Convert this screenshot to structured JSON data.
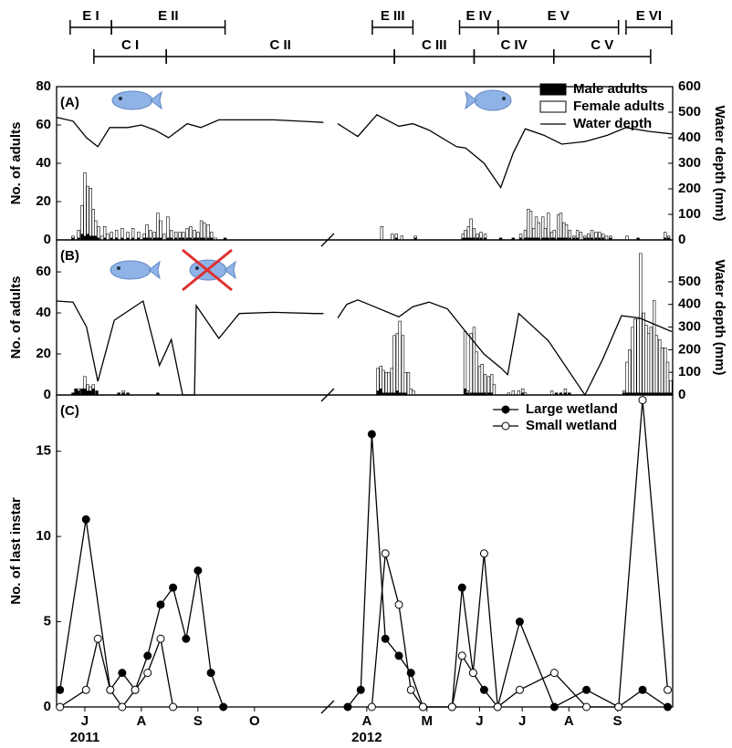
{
  "stages": {
    "E": [
      {
        "label": "E I",
        "range": [
          6.74,
          7.47
        ]
      },
      {
        "label": "E II",
        "range": [
          7.47,
          9.48
        ]
      },
      {
        "label": "E III",
        "range": [
          16.11,
          16.92
        ]
      },
      {
        "label": "E IV",
        "range": [
          17.85,
          18.62
        ]
      },
      {
        "label": "E V",
        "range": [
          18.62,
          21.02
        ]
      },
      {
        "label": "E VI",
        "range": [
          21.17,
          22.08
        ]
      }
    ],
    "C": [
      {
        "label": "C I",
        "range": [
          7.16,
          8.44
        ]
      },
      {
        "label": "C II",
        "range": [
          8.44,
          16.55
        ]
      },
      {
        "label": "C III",
        "range": [
          16.55,
          18.14
        ]
      },
      {
        "label": "C IV",
        "range": [
          18.14,
          19.73
        ]
      },
      {
        "label": "C V",
        "range": [
          19.73,
          21.66
        ]
      }
    ]
  },
  "chart_data": [
    {
      "type": "bar",
      "panel_label": "(A)",
      "ylabel": "No. of adults",
      "y2label": "Water depth (mm)",
      "xlim": [
        6.5,
        22.1
      ],
      "xbreak": [
        11.23,
        15.42
      ],
      "ylim": [
        0,
        80
      ],
      "yticks": [
        0,
        20,
        40,
        60,
        80
      ],
      "y2lim": [
        0,
        600
      ],
      "y2ticks": [
        0,
        100,
        200,
        300,
        400,
        500,
        600
      ],
      "stacked": true,
      "series": [
        {
          "name": "Male adults",
          "type": "bar",
          "color": "#000000",
          "x": [
            6.79,
            6.89,
            6.95,
            7.0,
            7.05,
            7.1,
            7.15,
            7.19,
            7.24,
            7.31,
            7.35,
            7.4,
            7.47,
            7.56,
            7.66,
            7.76,
            7.85,
            7.95,
            8.05,
            8.1,
            8.16,
            8.23,
            8.29,
            8.34,
            8.4,
            8.47,
            8.53,
            8.61,
            8.68,
            8.74,
            8.81,
            8.87,
            8.94,
            9.0,
            9.06,
            9.11,
            9.18,
            9.24,
            9.31,
            9.48,
            16.3,
            16.51,
            16.59,
            16.7,
            16.97,
            17.92,
            17.97,
            18.03,
            18.08,
            18.14,
            18.21,
            18.28,
            18.36,
            18.67,
            18.92,
            19.07,
            19.16,
            19.22,
            19.27,
            19.33,
            19.38,
            19.43,
            19.51,
            19.56,
            19.62,
            19.69,
            19.74,
            19.82,
            19.87,
            19.93,
            19.98,
            20.05,
            20.13,
            20.2,
            20.27,
            20.35,
            20.42,
            20.49,
            20.57,
            20.64,
            20.71,
            20.78,
            20.86,
            21.19,
            21.41,
            21.95,
            22.02
          ],
          "values": [
            1,
            1,
            3,
            2,
            3,
            2,
            2,
            2,
            1,
            0,
            1,
            0,
            1,
            1,
            1,
            1,
            1,
            1,
            1,
            1,
            1,
            1,
            1,
            1,
            0,
            1,
            1,
            1,
            1,
            1,
            1,
            1,
            1,
            1,
            1,
            1,
            1,
            1,
            0,
            1,
            0,
            0,
            1,
            0,
            1,
            1,
            1,
            1,
            1,
            1,
            1,
            1,
            1,
            1,
            1,
            1,
            1,
            1,
            1,
            1,
            1,
            1,
            1,
            1,
            1,
            1,
            1,
            1,
            1,
            1,
            1,
            1,
            1,
            1,
            0,
            1,
            1,
            1,
            1,
            1,
            1,
            0,
            1,
            0,
            1,
            1,
            1
          ]
        },
        {
          "name": "Female adults",
          "type": "bar",
          "color": "#ffffff",
          "x": [
            6.79,
            6.89,
            6.95,
            7.0,
            7.05,
            7.1,
            7.15,
            7.19,
            7.24,
            7.31,
            7.35,
            7.4,
            7.47,
            7.56,
            7.66,
            7.76,
            7.85,
            7.95,
            8.05,
            8.1,
            8.16,
            8.23,
            8.29,
            8.34,
            8.4,
            8.47,
            8.53,
            8.61,
            8.68,
            8.74,
            8.81,
            8.87,
            8.94,
            9.0,
            9.06,
            9.11,
            9.18,
            9.24,
            9.31,
            9.48,
            16.3,
            16.51,
            16.59,
            16.7,
            16.97,
            17.92,
            17.97,
            18.03,
            18.08,
            18.14,
            18.21,
            18.28,
            18.36,
            18.67,
            18.92,
            19.07,
            19.16,
            19.22,
            19.27,
            19.33,
            19.38,
            19.43,
            19.51,
            19.56,
            19.62,
            19.69,
            19.74,
            19.82,
            19.87,
            19.93,
            19.98,
            20.05,
            20.13,
            20.2,
            20.27,
            20.35,
            20.42,
            20.49,
            20.57,
            20.64,
            20.71,
            20.78,
            20.86,
            21.19,
            21.41,
            21.95,
            22.02
          ],
          "values": [
            1,
            4,
            15,
            33,
            25,
            25,
            14,
            8,
            6,
            2,
            6,
            3,
            3,
            4,
            5,
            3,
            5,
            3,
            2,
            7,
            4,
            3,
            13,
            9,
            3,
            11,
            4,
            3,
            3,
            3,
            5,
            6,
            4,
            3,
            9,
            8,
            7,
            3,
            1,
            0,
            7,
            3,
            2,
            2,
            1,
            2,
            4,
            6,
            10,
            5,
            2,
            3,
            2,
            0,
            0,
            2,
            4,
            15,
            14,
            5,
            11,
            8,
            11,
            5,
            13,
            3,
            4,
            12,
            13,
            8,
            7,
            4,
            1,
            4,
            4,
            1,
            2,
            4,
            3,
            3,
            2,
            2,
            1,
            2,
            0,
            3,
            1
          ]
        },
        {
          "name": "Water depth",
          "type": "line",
          "axis": "y2",
          "color": "#000000",
          "x": [
            6.5,
            6.79,
            7.03,
            7.23,
            7.44,
            7.76,
            8.0,
            8.24,
            8.48,
            8.81,
            9.05,
            9.37,
            10.34,
            10.98,
            11.22,
            15.42,
            15.82,
            16.2,
            16.64,
            16.92,
            17.24,
            17.79,
            17.97,
            18.34,
            18.67,
            18.92,
            19.16,
            19.53,
            19.89,
            20.35,
            20.8,
            21.17,
            21.62,
            22.08
          ],
          "values": [
            480,
            465,
            400,
            365,
            440,
            440,
            450,
            430,
            400,
            455,
            440,
            470,
            470,
            463,
            460,
            455,
            405,
            490,
            445,
            455,
            430,
            365,
            360,
            300,
            205,
            340,
            435,
            410,
            375,
            385,
            410,
            440,
            425,
            415
          ]
        }
      ]
    },
    {
      "type": "bar",
      "panel_label": "(B)",
      "ylabel": "No. of adults",
      "y2label": "Water depth (mm)",
      "xlim": [
        6.5,
        22.1
      ],
      "xbreak": [
        11.23,
        15.42
      ],
      "ylim": [
        0,
        75.6
      ],
      "yticks": [
        0,
        20,
        40,
        60
      ],
      "y2lim": [
        0,
        685
      ],
      "y2ticks": [
        0,
        100,
        200,
        300,
        400,
        500
      ],
      "stacked": true,
      "series": [
        {
          "name": "Male adults",
          "type": "bar",
          "color": "#000000",
          "x": [
            6.79,
            6.84,
            6.89,
            6.95,
            7.0,
            7.05,
            7.1,
            7.15,
            7.21,
            7.6,
            7.68,
            7.76,
            8.29,
            16.22,
            16.28,
            16.33,
            16.39,
            16.44,
            16.5,
            16.55,
            16.61,
            16.66,
            16.72,
            16.77,
            16.83,
            16.88,
            16.93,
            17.96,
            18.01,
            18.08,
            18.14,
            18.19,
            18.25,
            18.3,
            18.36,
            18.43,
            18.49,
            18.54,
            18.83,
            18.92,
            19.03,
            19.11,
            19.16,
            19.69,
            19.78,
            19.87,
            19.96,
            20.04,
            21.13,
            21.19,
            21.24,
            21.3,
            21.35,
            21.41,
            21.46,
            21.52,
            21.57,
            21.62,
            21.67,
            21.73,
            21.78,
            21.84,
            21.89,
            21.95,
            22.0,
            22.06
          ],
          "values": [
            1,
            3,
            2,
            3,
            3,
            2,
            2,
            3,
            2,
            1,
            1,
            1,
            1,
            2,
            3,
            1,
            1,
            1,
            1,
            1,
            2,
            1,
            1,
            1,
            0,
            0,
            0,
            3,
            1,
            1,
            1,
            1,
            1,
            1,
            1,
            1,
            1,
            0,
            0,
            0,
            0,
            1,
            0,
            0,
            1,
            1,
            1,
            1,
            1,
            1,
            1,
            1,
            1,
            1,
            1,
            1,
            1,
            1,
            1,
            1,
            1,
            1,
            1,
            1,
            1,
            1
          ]
        },
        {
          "name": "Female adults",
          "type": "bar",
          "color": "#ffffff",
          "x": [
            6.79,
            6.84,
            6.89,
            6.95,
            7.0,
            7.05,
            7.1,
            7.15,
            7.21,
            7.6,
            7.68,
            7.76,
            8.29,
            16.22,
            16.28,
            16.33,
            16.39,
            16.44,
            16.5,
            16.55,
            16.61,
            16.66,
            16.72,
            16.77,
            16.83,
            16.88,
            16.93,
            17.96,
            18.01,
            18.08,
            18.14,
            18.19,
            18.25,
            18.3,
            18.36,
            18.43,
            18.49,
            18.54,
            18.83,
            18.92,
            19.03,
            19.11,
            19.16,
            19.69,
            19.78,
            19.87,
            19.96,
            20.04,
            21.13,
            21.19,
            21.24,
            21.3,
            21.35,
            21.41,
            21.46,
            21.52,
            21.57,
            21.62,
            21.67,
            21.73,
            21.78,
            21.84,
            21.89,
            21.95,
            22.0,
            22.06
          ],
          "values": [
            0,
            0,
            1,
            0,
            6,
            3,
            2,
            2,
            0,
            0,
            1,
            0,
            0,
            11,
            11,
            11,
            10,
            10,
            12,
            28,
            28,
            35,
            28,
            10,
            11,
            3,
            2,
            28,
            1,
            29,
            32,
            20,
            13,
            14,
            9,
            8,
            9,
            5,
            1,
            2,
            2,
            2,
            1,
            2,
            0,
            0,
            2,
            0,
            1,
            15,
            21,
            32,
            36,
            36,
            68,
            39,
            33,
            29,
            32,
            45,
            28,
            26,
            22,
            22,
            15,
            6
          ]
        },
        {
          "name": "Water depth",
          "type": "line",
          "axis": "y2",
          "color": "#000000",
          "x": [
            6.5,
            6.79,
            7.03,
            7.23,
            7.52,
            8.03,
            8.32,
            8.53,
            8.73,
            8.94,
            8.97,
            9.37,
            9.73,
            10.34,
            11.06,
            11.22,
            15.42,
            15.6,
            15.82,
            16.15,
            16.64,
            16.92,
            17.24,
            17.61,
            17.97,
            18.34,
            18.67,
            18.81,
            19.03,
            19.62,
            20.35,
            20.71,
            21.08,
            21.44,
            22.08
          ],
          "values": [
            415,
            410,
            300,
            60,
            330,
            415,
            130,
            245,
            0,
            0,
            395,
            250,
            360,
            365,
            360,
            360,
            340,
            400,
            420,
            390,
            345,
            390,
            410,
            380,
            280,
            180,
            120,
            90,
            360,
            240,
            0,
            160,
            350,
            340,
            280
          ]
        }
      ]
    },
    {
      "type": "line",
      "panel_label": "(C)",
      "ylabel": "No. of last instar",
      "xlim": [
        6.5,
        22.1
      ],
      "xbreak": [
        11.23,
        15.42
      ],
      "ylim": [
        0,
        18.3
      ],
      "yticks": [
        0,
        5,
        10,
        15
      ],
      "xticks": [
        {
          "value": 7,
          "label": "J"
        },
        {
          "value": 8,
          "label": "A"
        },
        {
          "value": 9,
          "label": "S"
        },
        {
          "value": 10,
          "label": "O"
        },
        {
          "value": 16,
          "label": "A"
        },
        {
          "value": 17.2,
          "label": "M"
        },
        {
          "value": 18.25,
          "label": "J"
        },
        {
          "value": 19.1,
          "label": "J"
        },
        {
          "value": 20.03,
          "label": "A"
        },
        {
          "value": 21,
          "label": "S"
        }
      ],
      "year_ticks": [
        {
          "value": 7,
          "label": "2011"
        },
        {
          "value": 16,
          "label": "2012"
        }
      ],
      "series": [
        {
          "name": "Large wetland",
          "type": "line",
          "color": "#000000",
          "marker_color": "#000000",
          "x": [
            6.56,
            7.02,
            7.45,
            7.66,
            7.89,
            8.11,
            8.34,
            8.56,
            8.79,
            9.0,
            9.23,
            9.45,
            15.62,
            15.88,
            16.1,
            16.37,
            16.64,
            16.88,
            17.12,
            17.7,
            17.9,
            18.12,
            18.34,
            18.61,
            19.05,
            19.74,
            20.38,
            21.02,
            21.5,
            22.0
          ],
          "values": [
            1,
            11,
            1,
            2,
            1,
            3,
            6,
            7,
            4,
            8,
            2,
            0,
            0,
            1,
            16,
            4,
            3,
            2,
            0,
            0,
            7,
            2,
            1,
            0,
            5,
            0,
            1,
            0,
            1,
            0
          ]
        },
        {
          "name": "Small wetland",
          "type": "line",
          "color": "#000000",
          "marker_color": "#ffffff",
          "x": [
            6.56,
            7.02,
            7.23,
            7.45,
            7.66,
            7.89,
            8.11,
            8.34,
            8.56,
            16.1,
            16.37,
            16.64,
            16.88,
            17.12,
            17.7,
            17.9,
            18.12,
            18.34,
            18.61,
            19.05,
            19.74,
            20.38,
            21.02,
            21.5,
            22.0
          ],
          "values": [
            0,
            1,
            4,
            1,
            0,
            1,
            2,
            4,
            0,
            0,
            9,
            6,
            1,
            0,
            0,
            3,
            2,
            9,
            0,
            1,
            2,
            0,
            0,
            18,
            1
          ]
        }
      ]
    }
  ]
}
